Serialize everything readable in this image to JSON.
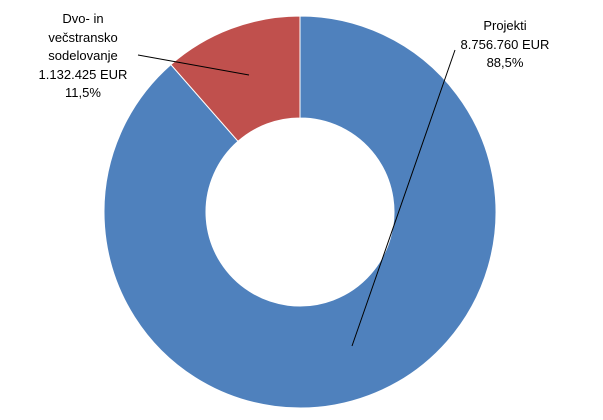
{
  "chart_data": {
    "type": "donut",
    "categories": [
      "Projekti",
      "Dvo- in večstransko sodelovanje"
    ],
    "values": [
      8756760,
      1132425
    ],
    "value_labels": [
      "8.756.760 EUR",
      "1.132.425 EUR"
    ],
    "percentages": [
      88.5,
      11.5
    ],
    "percentage_labels": [
      "88,5%",
      "11,5%"
    ],
    "colors": [
      "#4f81bd",
      "#c0504d"
    ]
  }
}
